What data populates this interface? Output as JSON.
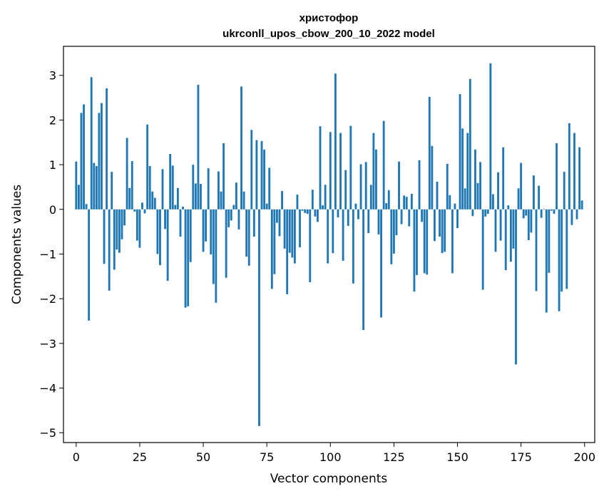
{
  "chart_data": {
    "type": "bar",
    "title": "христофор",
    "subtitle": "ukrconll_upos_cbow_200_10_2022 model",
    "xlabel": "Vector components",
    "ylabel": "Components values",
    "xlim": [
      -5,
      204
    ],
    "ylim": [
      -5.22,
      3.65
    ],
    "xticks": [
      0,
      25,
      50,
      75,
      100,
      125,
      150,
      175,
      200
    ],
    "yticks": [
      3,
      2,
      1,
      0,
      -1,
      -2,
      -3,
      -4,
      -5
    ],
    "xtick_labels": [
      "0",
      "25",
      "50",
      "75",
      "100",
      "125",
      "150",
      "175",
      "200"
    ],
    "ytick_labels": [
      "3",
      "2",
      "1",
      "0",
      "−1",
      "−2",
      "−3",
      "−4",
      "−5"
    ],
    "bar_color": "#1f77b4",
    "grid": false,
    "legend": "none",
    "x": [
      0,
      1,
      2,
      3,
      4,
      5,
      6,
      7,
      8,
      9,
      10,
      11,
      12,
      13,
      14,
      15,
      16,
      17,
      18,
      19,
      20,
      21,
      22,
      23,
      24,
      25,
      26,
      27,
      28,
      29,
      30,
      31,
      32,
      33,
      34,
      35,
      36,
      37,
      38,
      39,
      40,
      41,
      42,
      43,
      44,
      45,
      46,
      47,
      48,
      49,
      50,
      51,
      52,
      53,
      54,
      55,
      56,
      57,
      58,
      59,
      60,
      61,
      62,
      63,
      64,
      65,
      66,
      67,
      68,
      69,
      70,
      71,
      72,
      73,
      74,
      75,
      76,
      77,
      78,
      79,
      80,
      81,
      82,
      83,
      84,
      85,
      86,
      87,
      88,
      89,
      90,
      91,
      92,
      93,
      94,
      95,
      96,
      97,
      98,
      99,
      100,
      101,
      102,
      103,
      104,
      105,
      106,
      107,
      108,
      109,
      110,
      111,
      112,
      113,
      114,
      115,
      116,
      117,
      118,
      119,
      120,
      121,
      122,
      123,
      124,
      125,
      126,
      127,
      128,
      129,
      130,
      131,
      132,
      133,
      134,
      135,
      136,
      137,
      138,
      139,
      140,
      141,
      142,
      143,
      144,
      145,
      146,
      147,
      148,
      149,
      150,
      151,
      152,
      153,
      154,
      155,
      156,
      157,
      158,
      159,
      160,
      161,
      162,
      163,
      164,
      165,
      166,
      167,
      168,
      169,
      170,
      171,
      172,
      173,
      174,
      175,
      176,
      177,
      178,
      179,
      180,
      181,
      182,
      183,
      184,
      185,
      186,
      187,
      188,
      189,
      190,
      191,
      192,
      193,
      194,
      195,
      196,
      197,
      198,
      199
    ],
    "values": [
      1.07,
      0.55,
      2.16,
      2.35,
      0.12,
      -2.49,
      2.96,
      1.04,
      0.97,
      2.16,
      2.38,
      -1.22,
      2.71,
      -1.82,
      0.84,
      -1.35,
      -0.9,
      -0.97,
      -0.67,
      -0.36,
      1.6,
      0.48,
      1.08,
      -0.05,
      -0.7,
      -0.86,
      0.15,
      -0.09,
      1.9,
      0.97,
      0.4,
      0.26,
      -1.0,
      -1.25,
      0.9,
      -0.44,
      -1.6,
      1.24,
      0.98,
      0.1,
      0.48,
      -0.61,
      0.06,
      -2.2,
      -2.17,
      -1.18,
      1.0,
      0.58,
      2.79,
      0.57,
      -0.95,
      -0.72,
      0.92,
      -1.01,
      -1.67,
      -2.09,
      0.85,
      0.4,
      1.48,
      -1.53,
      -0.4,
      -0.25,
      0.1,
      0.6,
      -0.45,
      2.75,
      0.4,
      -1.06,
      -1.26,
      1.78,
      -0.61,
      1.55,
      -4.85,
      1.53,
      1.34,
      0.13,
      0.93,
      -1.78,
      -1.45,
      -0.3,
      -0.6,
      0.41,
      -0.88,
      -1.9,
      -0.97,
      -1.08,
      -1.21,
      0.33,
      -0.85,
      -0.03,
      -0.08,
      -0.1,
      -1.63,
      0.44,
      -0.16,
      -0.28,
      1.86,
      0.09,
      0.55,
      -1.21,
      1.73,
      -0.98,
      3.04,
      -0.18,
      1.71,
      -1.15,
      0.88,
      -0.37,
      1.87,
      -1.66,
      0.13,
      -0.22,
      1.01,
      -2.7,
      1.06,
      -0.53,
      0.55,
      1.71,
      1.34,
      -0.56,
      -2.42,
      1.98,
      0.14,
      0.43,
      -1.23,
      -0.99,
      -0.58,
      1.07,
      -0.33,
      0.31,
      0.28,
      -0.38,
      0.35,
      -1.84,
      -1.47,
      1.1,
      -0.28,
      -1.43,
      -1.46,
      2.52,
      1.42,
      -0.71,
      0.62,
      -0.61,
      -0.98,
      -0.95,
      1.02,
      0.32,
      -1.43,
      0.13,
      -0.42,
      2.58,
      1.81,
      0.47,
      1.71,
      2.92,
      -0.15,
      1.34,
      0.59,
      1.06,
      -1.8,
      -0.16,
      -0.1,
      3.27,
      0.34,
      -0.95,
      0.83,
      -0.7,
      1.39,
      -1.36,
      0.09,
      -1.17,
      -0.88,
      -3.47,
      0.47,
      1.04,
      -0.2,
      -0.14,
      -0.69,
      -0.52,
      0.76,
      -1.83,
      0.53,
      -0.19,
      0.01,
      -2.31,
      -1.42,
      -0.03,
      -0.1,
      1.48,
      -2.28,
      -1.84,
      0.84,
      -1.78,
      1.93,
      -0.35,
      1.71,
      -0.22,
      1.39,
      0.2
    ]
  }
}
